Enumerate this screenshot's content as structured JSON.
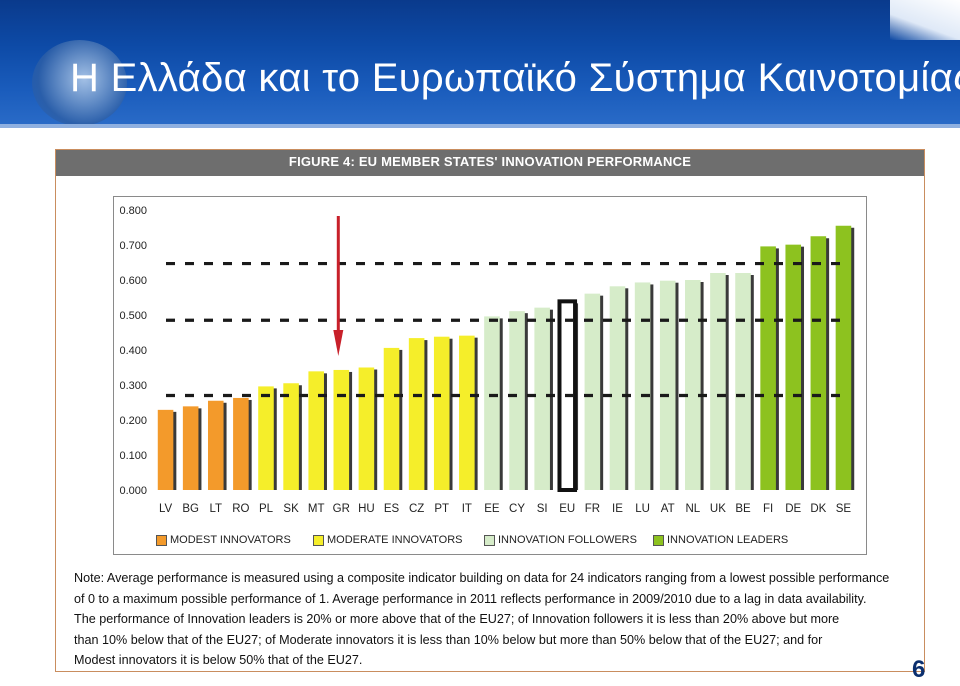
{
  "slide": {
    "title": "Η Ελλάδα και το Ευρωπαϊκό Σύστημα Καινοτομίας",
    "page_number": "6"
  },
  "figure": {
    "title": "FIGURE 4: EU MEMBER STATES' INNOVATION PERFORMANCE",
    "note_lines": [
      "Note: Average performance is measured using a composite indicator building on data for 24 indicators ranging from a lowest possible performance",
      "of 0 to a maximum possible performance of 1. Average performance in 2011 reflects performance in 2009/2010 due to a lag in data availability.",
      "The performance of Innovation leaders is 20% or more above that of the EU27; of Innovation followers it is less than 20% above but more",
      "than 10% below that of the EU27; of Moderate innovators it is less than 10% below but more than 50% below that of the EU27; and for",
      "Modest innovators it is below 50% that of the EU27."
    ]
  },
  "chart_data": {
    "type": "bar",
    "title": "FIGURE 4: EU MEMBER STATES' INNOVATION PERFORMANCE",
    "xlabel": "",
    "ylabel": "",
    "ylim": [
      0,
      0.8
    ],
    "yticks": [
      "0.000",
      "0.100",
      "0.200",
      "0.300",
      "0.400",
      "0.500",
      "0.600",
      "0.700",
      "0.800"
    ],
    "grid": false,
    "legend_position": "bottom",
    "categories": [
      "LV",
      "BG",
      "LT",
      "RO",
      "PL",
      "SK",
      "MT",
      "GR",
      "HU",
      "ES",
      "CZ",
      "PT",
      "IT",
      "EE",
      "CY",
      "SI",
      "EU",
      "FR",
      "IE",
      "LU",
      "AT",
      "NL",
      "UK",
      "BE",
      "FI",
      "DE",
      "DK",
      "SE"
    ],
    "values": [
      0.229,
      0.239,
      0.255,
      0.263,
      0.296,
      0.305,
      0.339,
      0.343,
      0.35,
      0.406,
      0.434,
      0.438,
      0.441,
      0.496,
      0.511,
      0.521,
      0.539,
      0.561,
      0.582,
      0.593,
      0.598,
      0.6,
      0.62,
      0.62,
      0.696,
      0.701,
      0.725,
      0.755
    ],
    "groups": [
      "modest",
      "modest",
      "modest",
      "modest",
      "moderate",
      "moderate",
      "moderate",
      "moderate",
      "moderate",
      "moderate",
      "moderate",
      "moderate",
      "moderate",
      "follower",
      "follower",
      "follower",
      "eu",
      "follower",
      "follower",
      "follower",
      "follower",
      "follower",
      "follower",
      "follower",
      "leader",
      "leader",
      "leader",
      "leader"
    ],
    "legend": [
      {
        "key": "modest",
        "label": "MODEST INNOVATORS",
        "color": "#f39a2b"
      },
      {
        "key": "moderate",
        "label": "MODERATE INNOVATORS",
        "color": "#f5ee2a"
      },
      {
        "key": "follower",
        "label": "INNOVATION FOLLOWERS",
        "color": "#d6ecc9"
      },
      {
        "key": "leader",
        "label": "INNOVATION LEADERS",
        "color": "#8dc21f"
      }
    ],
    "group_colors": {
      "modest": "#f39a2b",
      "moderate": "#f5ee2a",
      "follower": "#d6ecc9",
      "leader": "#8dc21f",
      "eu": "#ffffff"
    },
    "reference_lines": [
      0.27,
      0.485,
      0.647
    ],
    "arrow_target": "GR",
    "arrow_color": "#c8202a"
  }
}
